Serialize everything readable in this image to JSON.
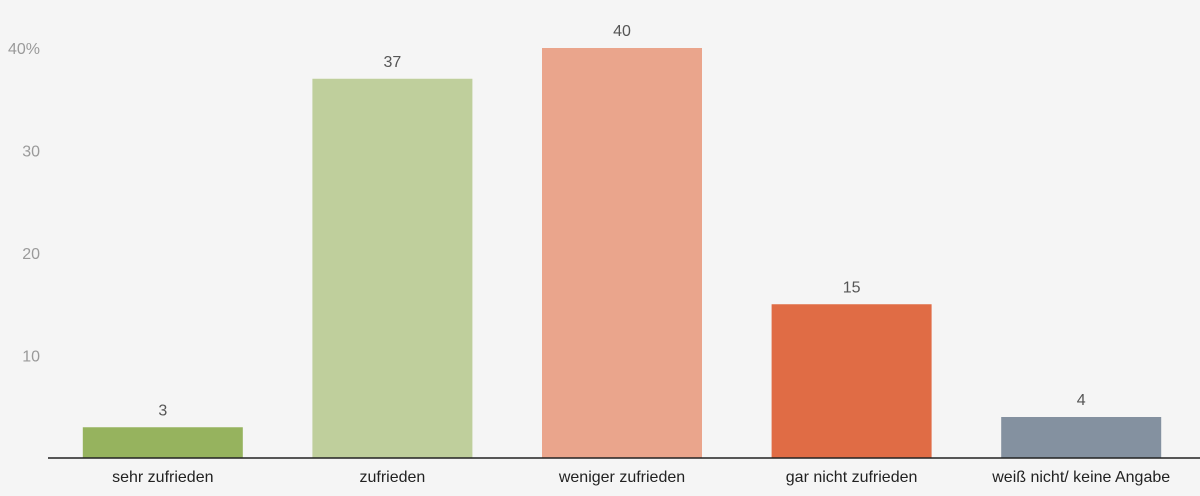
{
  "chart_data": {
    "type": "bar",
    "categories": [
      "sehr zufrieden",
      "zufrieden",
      "weniger zufrieden",
      "gar nicht zufrieden",
      "weiß nicht/ keine Angabe"
    ],
    "values": [
      3,
      37,
      40,
      15,
      4
    ],
    "colors": [
      "#96b35e",
      "#bfcf9c",
      "#eaa58c",
      "#e06c45",
      "#8491a0"
    ],
    "ylim": [
      0,
      40
    ],
    "yticks": [
      {
        "value": 10,
        "label": "10"
      },
      {
        "value": 20,
        "label": "20"
      },
      {
        "value": 30,
        "label": "30"
      },
      {
        "value": 40,
        "label": "40%"
      }
    ],
    "grid": false,
    "title": "",
    "xlabel": "",
    "ylabel": ""
  }
}
